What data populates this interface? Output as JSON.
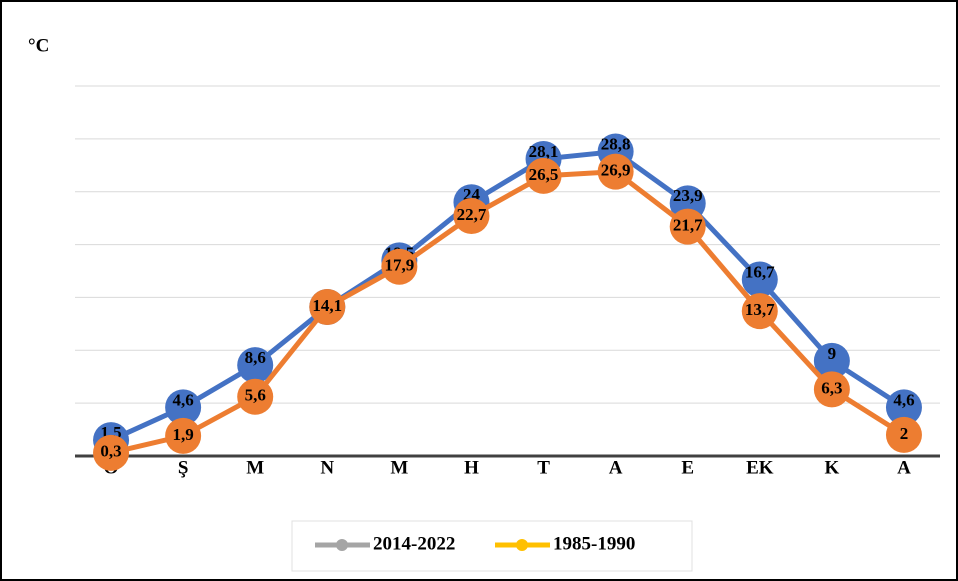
{
  "chart_data": {
    "type": "line",
    "y_unit": "°C",
    "categories": [
      "O",
      "Ş",
      "M",
      "N",
      "M",
      "H",
      "T",
      "A",
      "E",
      "EK",
      "K",
      "A"
    ],
    "series": [
      {
        "name": "2014-2022",
        "color": "#4472c4",
        "legend_color": "#a5a5a5",
        "values": [
          1.5,
          4.6,
          8.6,
          14.1,
          18.5,
          24,
          28.1,
          28.8,
          23.9,
          16.7,
          9,
          4.6
        ],
        "value_labels": [
          "1,5",
          "4,6",
          "8,6",
          "14,1",
          "18,5",
          "24",
          "28,1",
          "28,8",
          "23,9",
          "16,7",
          "9",
          "4,6"
        ]
      },
      {
        "name": "1985-1990",
        "color": "#ed7d31",
        "legend_color": "#ffc000",
        "values": [
          0.3,
          1.9,
          5.6,
          14.1,
          17.9,
          22.7,
          26.5,
          26.9,
          21.7,
          13.7,
          6.3,
          2
        ],
        "value_labels": [
          "0,3",
          "1,9",
          "5,6",
          "14,1",
          "17,9",
          "22,7",
          "26,5",
          "26,9",
          "21,7",
          "13,7",
          "6,3",
          "2"
        ]
      }
    ],
    "ylim": [
      0,
      35
    ],
    "yticks": [
      0,
      5,
      10,
      15,
      20,
      25,
      30,
      35
    ],
    "grid": true,
    "legend": "bottom"
  }
}
